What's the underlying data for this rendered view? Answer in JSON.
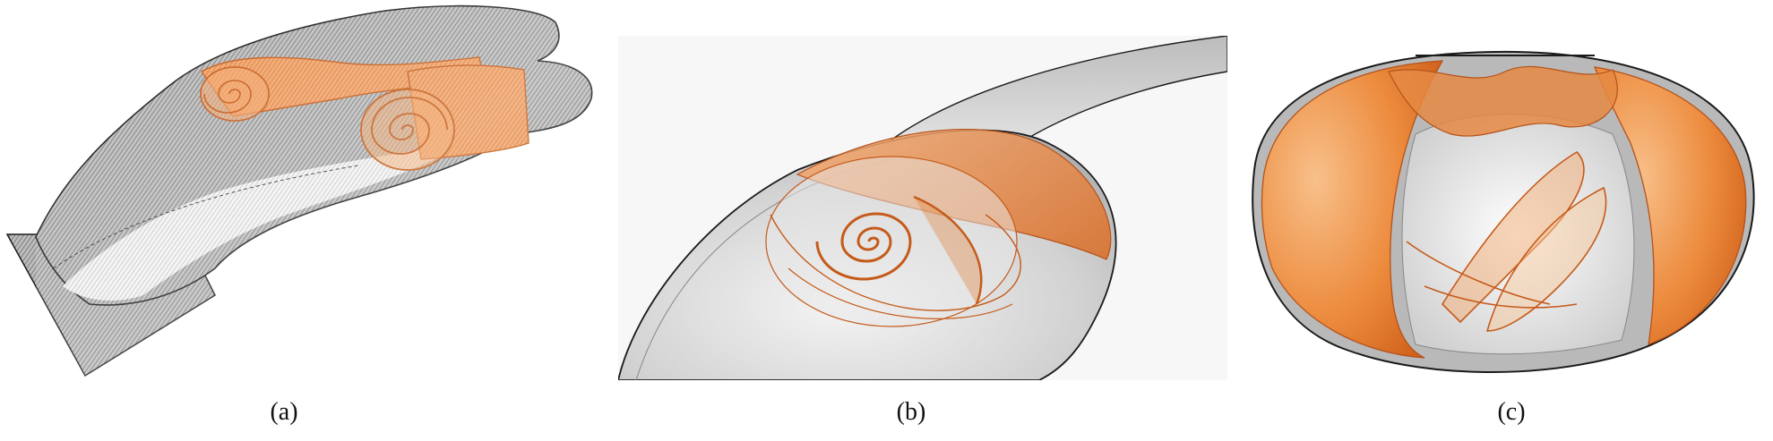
{
  "figure": {
    "panels": [
      {
        "id": "a",
        "caption": "(a)"
      },
      {
        "id": "b",
        "caption": "(b)"
      },
      {
        "id": "c",
        "caption": "(c)"
      }
    ],
    "colors": {
      "surface_gray": "#9a9a9a",
      "surface_light": "#e6e6e6",
      "vortex_orange": "#e07a2e",
      "vortex_dark": "#b5521a",
      "outline": "#1a1a1a",
      "background": "#ffffff"
    }
  }
}
